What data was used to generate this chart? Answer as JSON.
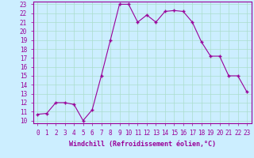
{
  "x": [
    0,
    1,
    2,
    3,
    4,
    5,
    6,
    7,
    8,
    9,
    10,
    11,
    12,
    13,
    14,
    15,
    16,
    17,
    18,
    19,
    20,
    21,
    22,
    23
  ],
  "y": [
    10.7,
    10.8,
    12.0,
    12.0,
    11.8,
    10.0,
    11.2,
    15.0,
    19.0,
    23.0,
    23.0,
    21.0,
    21.8,
    21.0,
    22.2,
    22.3,
    22.2,
    21.0,
    18.8,
    17.2,
    17.2,
    15.0,
    15.0,
    13.2
  ],
  "line_color": "#990099",
  "marker": "+",
  "marker_size": 3,
  "marker_lw": 1.0,
  "line_width": 0.8,
  "bg_color": "#cceeff",
  "grid_color": "#aaddcc",
  "xlabel": "Windchill (Refroidissement éolien,°C)",
  "xlabel_color": "#990099",
  "tick_color": "#990099",
  "axis_color": "#990099",
  "ylim": [
    9.7,
    23.3
  ],
  "xlim": [
    -0.5,
    23.5
  ],
  "yticks": [
    10,
    11,
    12,
    13,
    14,
    15,
    16,
    17,
    18,
    19,
    20,
    21,
    22,
    23
  ],
  "xticks": [
    0,
    1,
    2,
    3,
    4,
    5,
    6,
    7,
    8,
    9,
    10,
    11,
    12,
    13,
    14,
    15,
    16,
    17,
    18,
    19,
    20,
    21,
    22,
    23
  ],
  "tick_fontsize": 5.5,
  "xlabel_fontsize": 6.0
}
